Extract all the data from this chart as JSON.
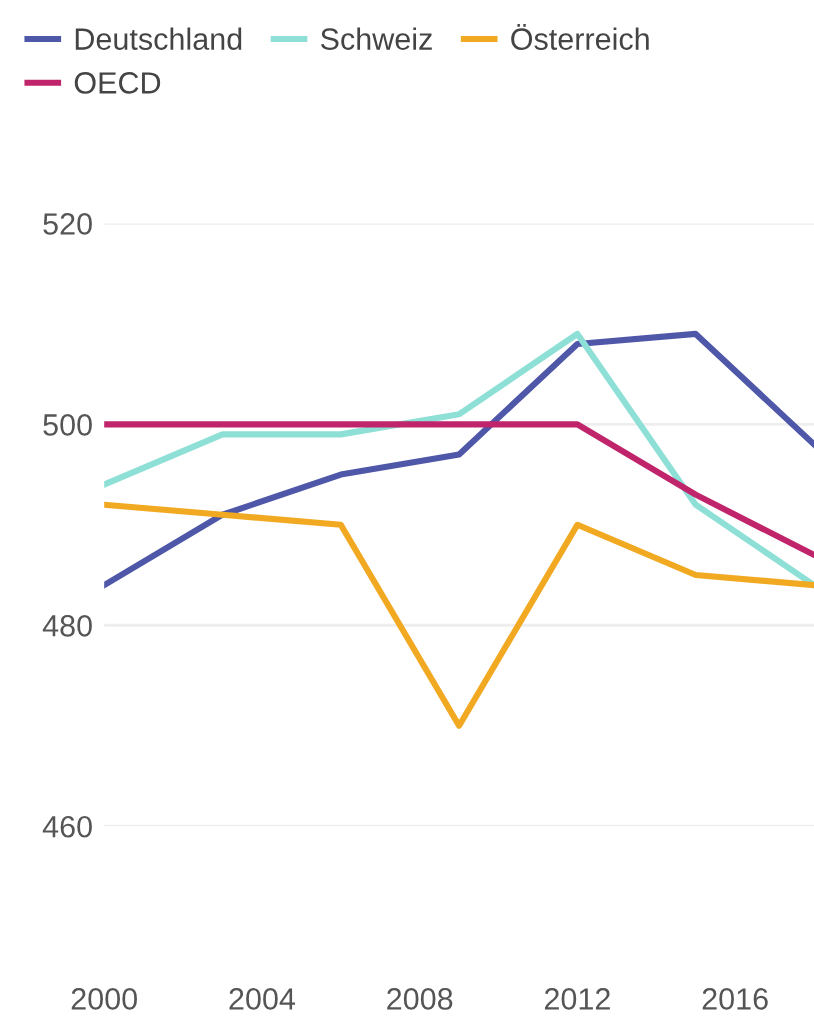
{
  "chart_data": {
    "type": "line",
    "x": [
      2000,
      2003,
      2006,
      2009,
      2012,
      2015,
      2018
    ],
    "series": [
      {
        "name": "Deutschland",
        "color": "#4f57a8",
        "values": [
          484,
          491,
          495,
          497,
          508,
          509,
          498
        ]
      },
      {
        "name": "Schweiz",
        "color": "#8ee0d6",
        "values": [
          494,
          499,
          499,
          501,
          509,
          492,
          484
        ]
      },
      {
        "name": "Österreich",
        "color": "#f2a922",
        "values": [
          492,
          491,
          490,
          470,
          490,
          485,
          484
        ]
      },
      {
        "name": "OECD",
        "color": "#c0256b",
        "values": [
          500,
          500,
          500,
          500,
          500,
          493,
          487
        ]
      }
    ],
    "xlim": [
      2000,
      2018
    ],
    "xticks": [
      2000,
      2004,
      2008,
      2012,
      2016
    ],
    "ylim": [
      460,
      520
    ],
    "yticks": [
      460,
      480,
      500,
      520
    ],
    "grid": "y",
    "legend": "top left",
    "marker": "none",
    "line_style": "solid"
  }
}
